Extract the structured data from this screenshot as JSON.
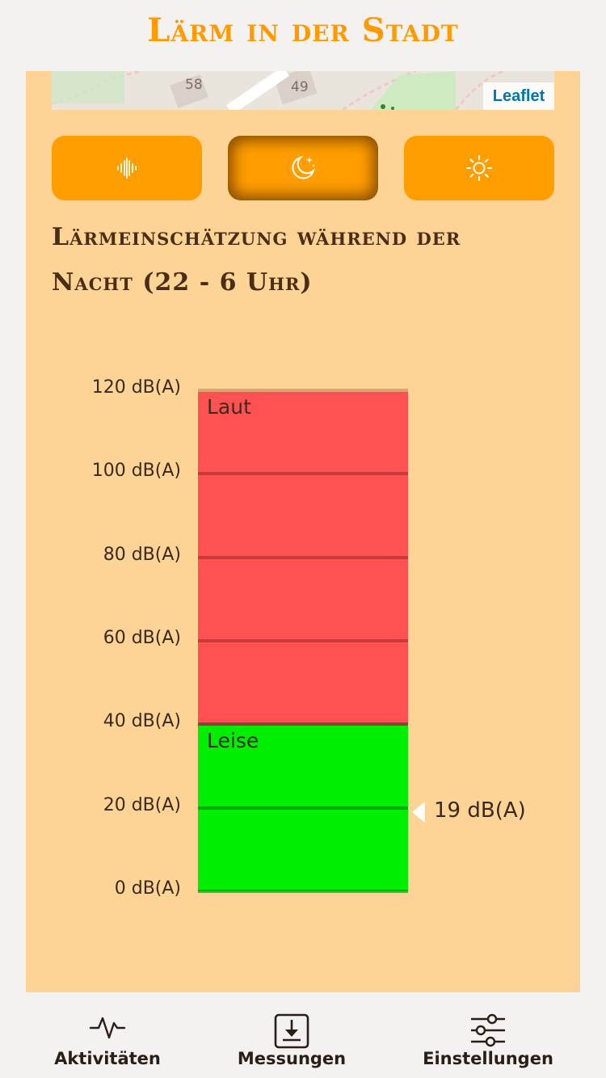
{
  "app": {
    "title": "Lärm in der Stadt"
  },
  "map": {
    "attribution": "Leaflet",
    "labels": [
      "58",
      "49"
    ]
  },
  "mode_buttons": [
    {
      "name": "sound",
      "icon": "waveform-icon",
      "active": false
    },
    {
      "name": "night",
      "icon": "moon-stars-icon",
      "active": true
    },
    {
      "name": "day",
      "icon": "sun-icon",
      "active": false
    }
  ],
  "section": {
    "title": "Lärmeinschätzung während der Nacht (22 - 6 Uhr)"
  },
  "chart_data": {
    "type": "bar",
    "ylim": [
      0,
      120
    ],
    "y_ticks": [
      "120 dB(A)",
      "100 dB(A)",
      "80 dB(A)",
      "60 dB(A)",
      "40 dB(A)",
      "20 dB(A)",
      "0 dB(A)"
    ],
    "y_tick_values": [
      120,
      100,
      80,
      60,
      40,
      20,
      0
    ],
    "bands": [
      {
        "label": "Laut",
        "from": 40,
        "to": 120,
        "color": "#ff5151"
      },
      {
        "label": "Leise",
        "from": 0,
        "to": 40,
        "color": "#00ee00"
      }
    ],
    "current_value": 19,
    "current_label": "19 dB(A)"
  },
  "nav": {
    "items": [
      {
        "label": "Aktivitäten",
        "icon": "activity-icon"
      },
      {
        "label": "Messungen",
        "icon": "download-box-icon"
      },
      {
        "label": "Einstellungen",
        "icon": "sliders-icon"
      }
    ]
  }
}
